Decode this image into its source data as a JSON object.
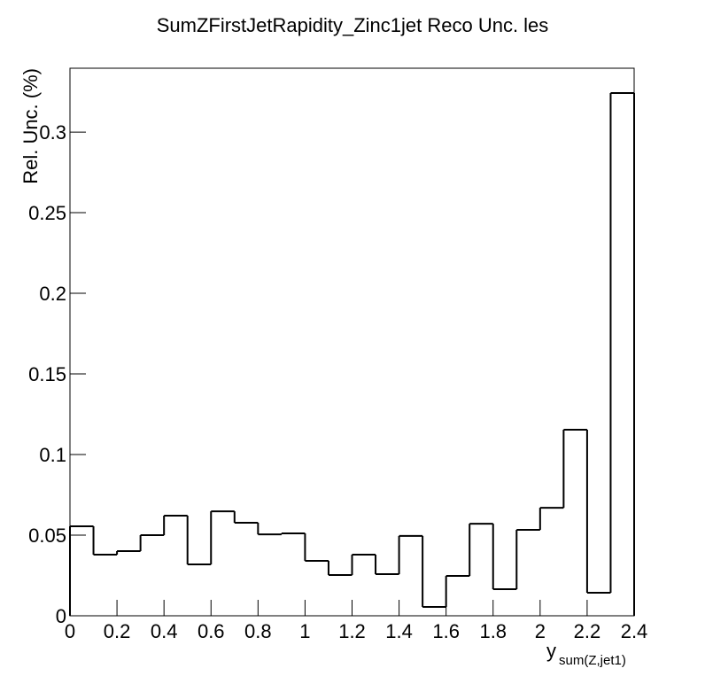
{
  "chart_data": {
    "type": "histogram",
    "title": "SumZFirstJetRapidity_Zinc1jet Reco Unc. les",
    "x_label": {
      "main": "y",
      "sub": "sum(Z,jet1)"
    },
    "y_label": "Rel. Unc. (%)",
    "bins": [
      0,
      0.1,
      0.2,
      0.3,
      0.4,
      0.5,
      0.6,
      0.7,
      0.8,
      0.9,
      1,
      1.1,
      1.2,
      1.3,
      1.4,
      1.5,
      1.6,
      1.7,
      1.8,
      1.9,
      2,
      2.1,
      2.2,
      2.3,
      2.4
    ],
    "values": [
      0.0555,
      0.0379,
      0.0401,
      0.05,
      0.0621,
      0.0319,
      0.0648,
      0.0577,
      0.0505,
      0.0511,
      0.0341,
      0.0253,
      0.0379,
      0.0258,
      0.0495,
      0.0055,
      0.0247,
      0.0571,
      0.0165,
      0.0533,
      0.067,
      0.1154,
      0.0143,
      0.3242
    ],
    "color": "#000000",
    "xlim": [
      0,
      2.4
    ],
    "xticks": [
      0,
      0.2,
      0.4,
      0.6,
      0.8,
      1,
      1.2,
      1.4,
      1.6,
      1.8,
      2,
      2.2,
      2.4
    ],
    "ylim": [
      0,
      0.3396
    ],
    "yticks": [
      0,
      0.05,
      0.1,
      0.15,
      0.2,
      0.25,
      0.3
    ]
  }
}
